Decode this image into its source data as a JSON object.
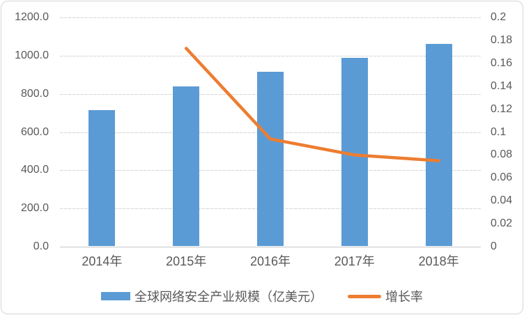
{
  "chart_data": {
    "type": "bar",
    "subtype": "bar-line-combo-dual-axis",
    "categories": [
      "2014年",
      "2015年",
      "2016年",
      "2017年",
      "2018年"
    ],
    "series": [
      {
        "name": "全球网络安全产业规模（亿美元）",
        "type": "bar",
        "axis": "left",
        "color": "#5b9bd5",
        "values": [
          716.6,
          838.7,
          917.0,
          990.0,
          1060.0
        ]
      },
      {
        "name": "增长率",
        "type": "line",
        "axis": "right",
        "color": "#ed7d31",
        "values": [
          null,
          0.173,
          0.094,
          0.08,
          0.075
        ]
      }
    ],
    "title": "",
    "xlabel": "",
    "ylabel": "",
    "left_axis": {
      "min": 0,
      "max": 1200,
      "step": 200,
      "tick_labels": [
        "0.0",
        "200.0",
        "400.0",
        "600.0",
        "800.0",
        "1000.0",
        "1200.0"
      ]
    },
    "right_axis": {
      "min": 0,
      "max": 0.2,
      "step": 0.02,
      "tick_labels": [
        "0",
        "0.02",
        "0.04",
        "0.06",
        "0.08",
        "0.1",
        "0.12",
        "0.14",
        "0.16",
        "0.18",
        "0.2"
      ]
    },
    "grid": "horizontal",
    "legend_position": "bottom"
  },
  "legend": {
    "bar_label": "全球网络安全产业规模（亿美元）",
    "line_label": "增长率"
  },
  "colors": {
    "bar": "#5b9bd5",
    "line": "#ed7d31",
    "text": "#595959",
    "gridline": "#d9d9d9"
  }
}
